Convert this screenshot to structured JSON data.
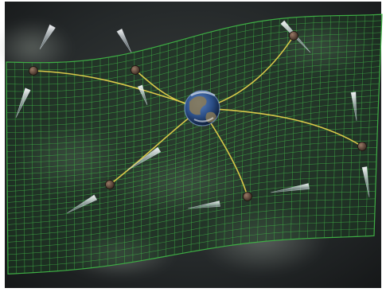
{
  "image": {
    "subject": "pulsar-timing-array-illustration",
    "palette": {
      "frame": "#ffffff",
      "space": "#1f2223",
      "grid": "#3fae45",
      "grid_fill": "#1e3a22",
      "timing_lines": "#d9c84a",
      "pulsar_node": "#5a4034",
      "beam": "#dfe8ee",
      "earth_ocean": "#2b4e86",
      "earth_land": "#8a7a56",
      "clouds": "#8c948c"
    },
    "elements": {
      "earth": "earth-icon",
      "pulsars": "pulsar-icon",
      "beams": "pulsar-beam-icon",
      "grid": "spacetime-grid",
      "lines": "timing-line"
    }
  }
}
